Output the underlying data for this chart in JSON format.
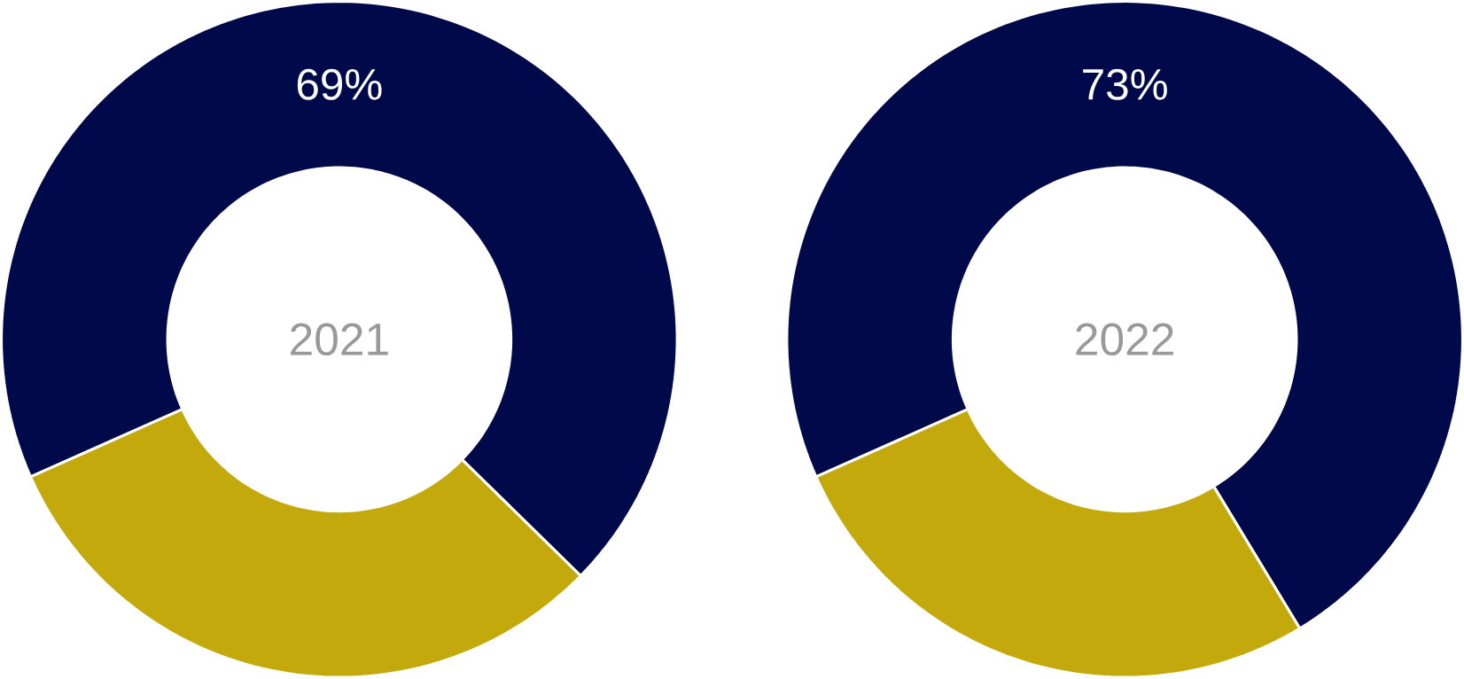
{
  "chart_data": [
    {
      "type": "donut",
      "title": "2021",
      "categories": [
        null,
        null
      ],
      "values": [
        69,
        31
      ],
      "colors": [
        "#000a4b",
        "#c4a90c"
      ],
      "value_labels": [
        "69%",
        null
      ]
    },
    {
      "type": "donut",
      "title": "2022",
      "categories": [
        null,
        null
      ],
      "values": [
        73,
        27
      ],
      "colors": [
        "#000a4b",
        "#c4a90c"
      ],
      "value_labels": [
        "73%",
        null
      ]
    }
  ]
}
